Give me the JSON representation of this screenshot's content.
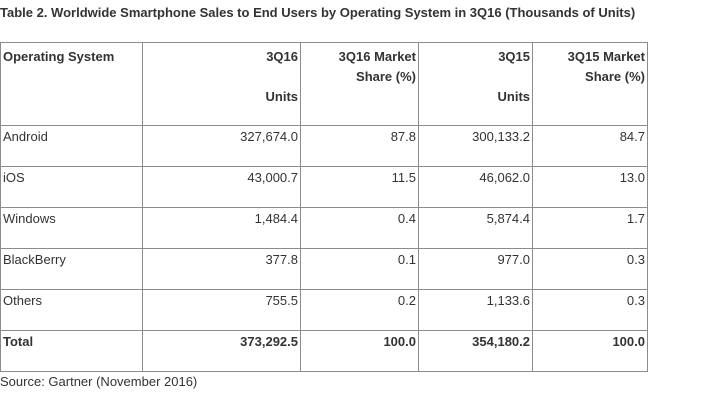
{
  "title": "Table 2. Worldwide Smartphone Sales to End Users by Operating System in 3Q16 (Thousands of Units)",
  "table": {
    "header": [
      {
        "top": "Operating System",
        "bottom": ""
      },
      {
        "top": "3Q16",
        "bottom": "Units"
      },
      {
        "top": "3Q16 Market Share (%)",
        "bottom": ""
      },
      {
        "top": "3Q15",
        "bottom": "Units"
      },
      {
        "top": "3Q15 Market Share (%)",
        "bottom": ""
      }
    ],
    "rows": [
      [
        "Android",
        "327,674.0",
        "87.8",
        "300,133.2",
        "84.7"
      ],
      [
        "iOS",
        "43,000.7",
        "11.5",
        "46,062.0",
        "13.0"
      ],
      [
        "Windows",
        "1,484.4",
        "0.4",
        "5,874.4",
        "1.7"
      ],
      [
        "BlackBerry",
        "377.8",
        "0.1",
        "977.0",
        "0.3"
      ],
      [
        "Others",
        "755.5",
        "0.2",
        "1,133.6",
        "0.3"
      ]
    ],
    "total": [
      "Total",
      "373,292.5",
      "100.0",
      "354,180.2",
      "100.0"
    ]
  },
  "source": "Source: Gartner (November 2016)"
}
